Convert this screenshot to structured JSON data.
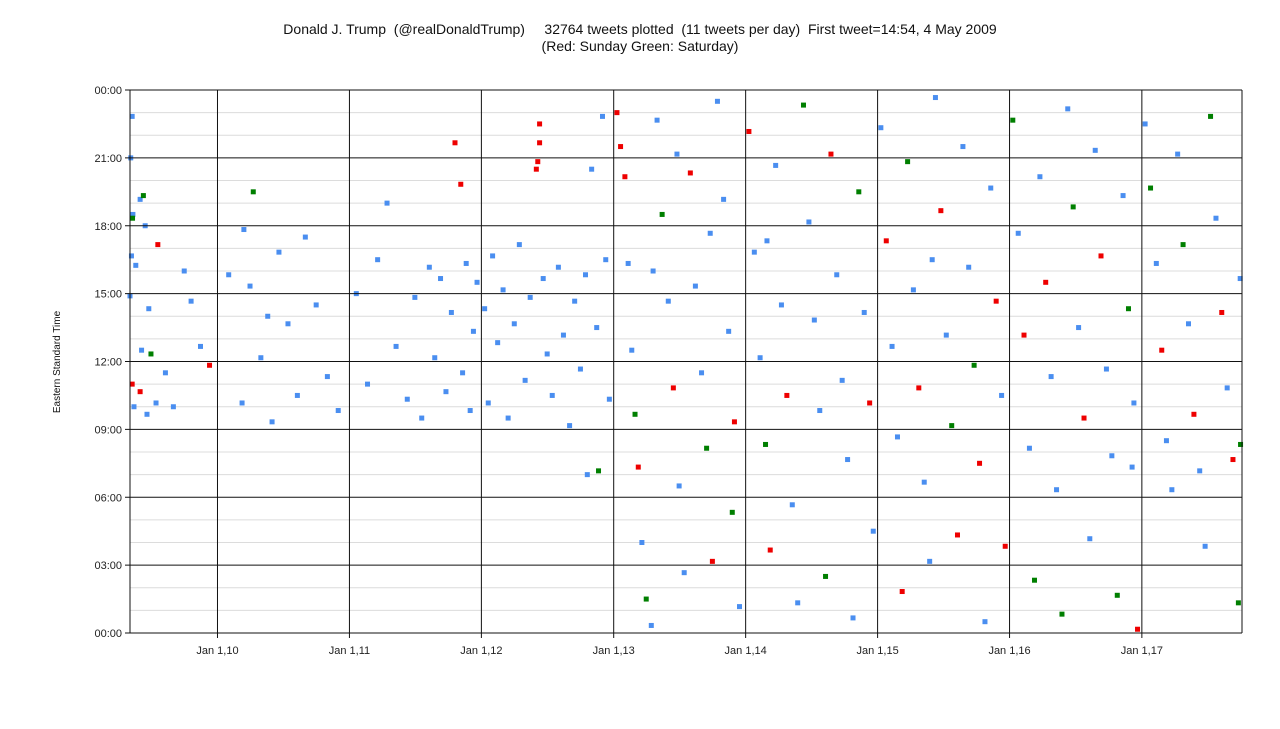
{
  "chart_data": {
    "type": "scatter",
    "title": "Donald J. Trump  (@realDonaldTrump)     32764 tweets plotted  (11 tweets per day)  First tweet=14:54, 4 May 2009",
    "subtitle": "(Red: Sunday  Green: Saturday)",
    "xlabel": "",
    "ylabel": "Eastern Standard Time",
    "xlim": [
      "2009-05-04",
      "2017-10-05"
    ],
    "ylim": [
      "00:00",
      "24:00"
    ],
    "x_ticks": [
      {
        "date": "2010-01-01",
        "label": "Jan 1,10"
      },
      {
        "date": "2011-01-01",
        "label": "Jan 1,11"
      },
      {
        "date": "2012-01-01",
        "label": "Jan 1,12"
      },
      {
        "date": "2013-01-01",
        "label": "Jan 1,13"
      },
      {
        "date": "2014-01-01",
        "label": "Jan 1,14"
      },
      {
        "date": "2015-01-01",
        "label": "Jan 1,15"
      },
      {
        "date": "2016-01-01",
        "label": "Jan 1,16"
      },
      {
        "date": "2017-01-01",
        "label": "Jan 1,17"
      }
    ],
    "y_ticks": [
      {
        "hour": 0,
        "label": "00:00"
      },
      {
        "hour": 3,
        "label": "03:00"
      },
      {
        "hour": 6,
        "label": "06:00"
      },
      {
        "hour": 9,
        "label": "09:00"
      },
      {
        "hour": 12,
        "label": "12:00"
      },
      {
        "hour": 15,
        "label": "15:00"
      },
      {
        "hour": 18,
        "label": "18:00"
      },
      {
        "hour": 21,
        "label": "21:00"
      },
      {
        "hour": 24,
        "label": "00:00"
      }
    ],
    "grid": true,
    "colors": {
      "weekday": "#4a8ef0",
      "saturday": "#007f00",
      "sunday": "#ee0000"
    },
    "points_note_key": [
      "date",
      "time",
      "day"
    ],
    "points": [
      [
        "2009-05-04",
        "14:54",
        "wd"
      ],
      [
        "2009-05-10",
        "22:50",
        "wd"
      ],
      [
        "2009-05-06",
        "21:00",
        "wd"
      ],
      [
        "2009-05-12",
        "18:30",
        "wd"
      ],
      [
        "2009-05-11",
        "18:20",
        "sa"
      ],
      [
        "2009-06-01",
        "19:10",
        "wd"
      ],
      [
        "2009-06-10",
        "19:20",
        "sa"
      ],
      [
        "2009-06-15",
        "18:00",
        "wd"
      ],
      [
        "2009-07-20",
        "17:10",
        "su"
      ],
      [
        "2009-05-08",
        "16:40",
        "wd"
      ],
      [
        "2009-05-20",
        "16:15",
        "wd"
      ],
      [
        "2009-06-05",
        "12:30",
        "wd"
      ],
      [
        "2009-07-01",
        "12:20",
        "sa"
      ],
      [
        "2009-05-10",
        "11:00",
        "su"
      ],
      [
        "2009-06-01",
        "10:40",
        "su"
      ],
      [
        "2009-05-15",
        "10:00",
        "wd"
      ],
      [
        "2009-06-20",
        "9:40",
        "wd"
      ],
      [
        "2009-07-15",
        "10:10",
        "wd"
      ],
      [
        "2009-08-10",
        "11:30",
        "wd"
      ],
      [
        "2009-09-01",
        "10:00",
        "wd"
      ],
      [
        "2009-10-01",
        "16:00",
        "wd"
      ],
      [
        "2009-10-20",
        "14:40",
        "wd"
      ],
      [
        "2009-11-15",
        "12:40",
        "wd"
      ],
      [
        "2009-12-10",
        "11:50",
        "su"
      ],
      [
        "2009-06-25",
        "14:20",
        "wd"
      ],
      [
        "2010-02-01",
        "15:50",
        "wd"
      ],
      [
        "2010-03-10",
        "10:10",
        "wd"
      ],
      [
        "2010-04-10",
        "19:30",
        "sa"
      ],
      [
        "2010-04-01",
        "15:20",
        "wd"
      ],
      [
        "2010-05-01",
        "12:10",
        "wd"
      ],
      [
        "2010-06-01",
        "9:20",
        "wd"
      ],
      [
        "2010-06-20",
        "16:50",
        "wd"
      ],
      [
        "2010-07-15",
        "13:40",
        "wd"
      ],
      [
        "2010-08-10",
        "10:30",
        "wd"
      ],
      [
        "2010-09-01",
        "17:30",
        "wd"
      ],
      [
        "2010-10-01",
        "14:30",
        "wd"
      ],
      [
        "2010-11-01",
        "11:20",
        "wd"
      ],
      [
        "2010-12-01",
        "9:50",
        "wd"
      ],
      [
        "2010-03-15",
        "17:50",
        "wd"
      ],
      [
        "2010-05-20",
        "14:00",
        "wd"
      ],
      [
        "2011-01-20",
        "15:00",
        "wd"
      ],
      [
        "2011-02-20",
        "11:00",
        "wd"
      ],
      [
        "2011-03-20",
        "16:30",
        "wd"
      ],
      [
        "2011-04-15",
        "19:00",
        "wd"
      ],
      [
        "2011-05-10",
        "12:40",
        "wd"
      ],
      [
        "2011-06-10",
        "10:20",
        "wd"
      ],
      [
        "2011-07-01",
        "14:50",
        "wd"
      ],
      [
        "2011-07-20",
        "9:30",
        "wd"
      ],
      [
        "2011-08-10",
        "16:10",
        "wd"
      ],
      [
        "2011-08-25",
        "12:10",
        "wd"
      ],
      [
        "2011-09-10",
        "15:40",
        "wd"
      ],
      [
        "2011-09-25",
        "10:40",
        "wd"
      ],
      [
        "2011-10-10",
        "14:10",
        "wd"
      ],
      [
        "2011-10-20",
        "21:40",
        "su"
      ],
      [
        "2011-11-05",
        "19:50",
        "su"
      ],
      [
        "2011-11-10",
        "11:30",
        "wd"
      ],
      [
        "2011-11-20",
        "16:20",
        "wd"
      ],
      [
        "2011-12-01",
        "9:50",
        "wd"
      ],
      [
        "2011-12-10",
        "13:20",
        "wd"
      ],
      [
        "2011-12-20",
        "15:30",
        "wd"
      ],
      [
        "2012-01-10",
        "14:20",
        "wd"
      ],
      [
        "2012-01-20",
        "10:10",
        "wd"
      ],
      [
        "2012-02-01",
        "16:40",
        "wd"
      ],
      [
        "2012-02-15",
        "12:50",
        "wd"
      ],
      [
        "2012-03-01",
        "15:10",
        "wd"
      ],
      [
        "2012-03-15",
        "9:30",
        "wd"
      ],
      [
        "2012-04-01",
        "13:40",
        "wd"
      ],
      [
        "2012-04-15",
        "17:10",
        "wd"
      ],
      [
        "2012-05-01",
        "11:10",
        "wd"
      ],
      [
        "2012-05-15",
        "14:50",
        "wd"
      ],
      [
        "2012-06-01",
        "20:30",
        "su"
      ],
      [
        "2012-06-05",
        "20:50",
        "su"
      ],
      [
        "2012-06-10",
        "22:30",
        "su"
      ],
      [
        "2012-06-10",
        "21:40",
        "su"
      ],
      [
        "2012-06-20",
        "15:40",
        "wd"
      ],
      [
        "2012-07-01",
        "12:20",
        "wd"
      ],
      [
        "2012-07-15",
        "10:30",
        "wd"
      ],
      [
        "2012-08-01",
        "16:10",
        "wd"
      ],
      [
        "2012-08-15",
        "13:10",
        "wd"
      ],
      [
        "2012-09-01",
        "9:10",
        "wd"
      ],
      [
        "2012-09-15",
        "14:40",
        "wd"
      ],
      [
        "2012-10-01",
        "11:40",
        "wd"
      ],
      [
        "2012-10-15",
        "15:50",
        "wd"
      ],
      [
        "2012-11-01",
        "20:30",
        "wd"
      ],
      [
        "2012-11-15",
        "13:30",
        "wd"
      ],
      [
        "2012-12-01",
        "22:50",
        "wd"
      ],
      [
        "2012-12-10",
        "16:30",
        "wd"
      ],
      [
        "2012-12-20",
        "10:20",
        "wd"
      ],
      [
        "2012-11-20",
        "7:10",
        "sa"
      ],
      [
        "2012-10-20",
        "7:00",
        "wd"
      ],
      [
        "2013-01-10",
        "23:00",
        "su"
      ],
      [
        "2013-01-20",
        "21:30",
        "su"
      ],
      [
        "2013-02-01",
        "20:10",
        "su"
      ],
      [
        "2013-02-10",
        "16:20",
        "wd"
      ],
      [
        "2013-02-20",
        "12:30",
        "wd"
      ],
      [
        "2013-03-01",
        "9:40",
        "sa"
      ],
      [
        "2013-03-10",
        "7:20",
        "su"
      ],
      [
        "2013-03-20",
        "4:00",
        "wd"
      ],
      [
        "2013-04-01",
        "1:30",
        "sa"
      ],
      [
        "2013-04-15",
        "0:20",
        "wd"
      ],
      [
        "2013-05-01",
        "22:40",
        "wd"
      ],
      [
        "2013-05-15",
        "18:30",
        "sa"
      ],
      [
        "2013-06-01",
        "14:40",
        "wd"
      ],
      [
        "2013-06-15",
        "10:50",
        "su"
      ],
      [
        "2013-07-01",
        "6:30",
        "wd"
      ],
      [
        "2013-07-15",
        "2:40",
        "wd"
      ],
      [
        "2013-08-01",
        "20:20",
        "su"
      ],
      [
        "2013-08-15",
        "15:20",
        "wd"
      ],
      [
        "2013-09-01",
        "11:30",
        "wd"
      ],
      [
        "2013-09-15",
        "8:10",
        "sa"
      ],
      [
        "2013-10-01",
        "3:10",
        "su"
      ],
      [
        "2013-10-15",
        "23:30",
        "wd"
      ],
      [
        "2013-11-01",
        "19:10",
        "wd"
      ],
      [
        "2013-11-15",
        "13:20",
        "wd"
      ],
      [
        "2013-12-01",
        "9:20",
        "su"
      ],
      [
        "2013-12-15",
        "1:10",
        "wd"
      ],
      [
        "2013-04-20",
        "16:00",
        "wd"
      ],
      [
        "2013-06-25",
        "21:10",
        "wd"
      ],
      [
        "2013-09-25",
        "17:40",
        "wd"
      ],
      [
        "2013-11-25",
        "5:20",
        "sa"
      ],
      [
        "2014-01-10",
        "22:10",
        "su"
      ],
      [
        "2014-01-25",
        "16:50",
        "wd"
      ],
      [
        "2014-02-10",
        "12:10",
        "wd"
      ],
      [
        "2014-02-25",
        "8:20",
        "sa"
      ],
      [
        "2014-03-10",
        "3:40",
        "su"
      ],
      [
        "2014-03-25",
        "20:40",
        "wd"
      ],
      [
        "2014-04-10",
        "14:30",
        "wd"
      ],
      [
        "2014-04-25",
        "10:30",
        "su"
      ],
      [
        "2014-05-10",
        "5:40",
        "wd"
      ],
      [
        "2014-05-25",
        "1:20",
        "wd"
      ],
      [
        "2014-06-10",
        "23:20",
        "sa"
      ],
      [
        "2014-06-25",
        "18:10",
        "wd"
      ],
      [
        "2014-07-10",
        "13:50",
        "wd"
      ],
      [
        "2014-07-25",
        "9:50",
        "wd"
      ],
      [
        "2014-08-10",
        "2:30",
        "sa"
      ],
      [
        "2014-08-25",
        "21:10",
        "su"
      ],
      [
        "2014-09-10",
        "15:50",
        "wd"
      ],
      [
        "2014-09-25",
        "11:10",
        "wd"
      ],
      [
        "2014-10-10",
        "7:40",
        "wd"
      ],
      [
        "2014-10-25",
        "0:40",
        "wd"
      ],
      [
        "2014-11-10",
        "19:30",
        "sa"
      ],
      [
        "2014-11-25",
        "14:10",
        "wd"
      ],
      [
        "2014-12-10",
        "10:10",
        "su"
      ],
      [
        "2014-12-20",
        "4:30",
        "wd"
      ],
      [
        "2014-03-01",
        "17:20",
        "wd"
      ],
      [
        "2015-01-10",
        "22:20",
        "wd"
      ],
      [
        "2015-01-25",
        "17:20",
        "su"
      ],
      [
        "2015-02-10",
        "12:40",
        "wd"
      ],
      [
        "2015-02-25",
        "8:40",
        "wd"
      ],
      [
        "2015-03-10",
        "1:50",
        "su"
      ],
      [
        "2015-03-25",
        "20:50",
        "sa"
      ],
      [
        "2015-04-10",
        "15:10",
        "wd"
      ],
      [
        "2015-04-25",
        "10:50",
        "su"
      ],
      [
        "2015-05-10",
        "6:40",
        "wd"
      ],
      [
        "2015-05-25",
        "3:10",
        "wd"
      ],
      [
        "2015-06-10",
        "23:40",
        "wd"
      ],
      [
        "2015-06-25",
        "18:40",
        "su"
      ],
      [
        "2015-07-10",
        "13:10",
        "wd"
      ],
      [
        "2015-07-25",
        "9:10",
        "sa"
      ],
      [
        "2015-08-10",
        "4:20",
        "su"
      ],
      [
        "2015-08-25",
        "21:30",
        "wd"
      ],
      [
        "2015-09-10",
        "16:10",
        "wd"
      ],
      [
        "2015-09-25",
        "11:50",
        "sa"
      ],
      [
        "2015-10-10",
        "7:30",
        "su"
      ],
      [
        "2015-10-25",
        "0:30",
        "wd"
      ],
      [
        "2015-11-10",
        "19:40",
        "wd"
      ],
      [
        "2015-11-25",
        "14:40",
        "su"
      ],
      [
        "2015-12-10",
        "10:30",
        "wd"
      ],
      [
        "2015-12-20",
        "3:50",
        "su"
      ],
      [
        "2015-06-01",
        "16:30",
        "wd"
      ],
      [
        "2016-01-10",
        "22:40",
        "sa"
      ],
      [
        "2016-01-25",
        "17:40",
        "wd"
      ],
      [
        "2016-02-10",
        "13:10",
        "su"
      ],
      [
        "2016-02-25",
        "8:10",
        "wd"
      ],
      [
        "2016-03-10",
        "2:20",
        "sa"
      ],
      [
        "2016-03-25",
        "20:10",
        "wd"
      ],
      [
        "2016-04-10",
        "15:30",
        "su"
      ],
      [
        "2016-04-25",
        "11:20",
        "wd"
      ],
      [
        "2016-05-10",
        "6:20",
        "wd"
      ],
      [
        "2016-05-25",
        "0:50",
        "sa"
      ],
      [
        "2016-06-10",
        "23:10",
        "wd"
      ],
      [
        "2016-06-25",
        "18:50",
        "sa"
      ],
      [
        "2016-07-10",
        "13:30",
        "wd"
      ],
      [
        "2016-07-25",
        "9:30",
        "su"
      ],
      [
        "2016-08-10",
        "4:10",
        "wd"
      ],
      [
        "2016-08-25",
        "21:20",
        "wd"
      ],
      [
        "2016-09-10",
        "16:40",
        "su"
      ],
      [
        "2016-09-25",
        "11:40",
        "wd"
      ],
      [
        "2016-10-10",
        "7:50",
        "wd"
      ],
      [
        "2016-10-25",
        "1:40",
        "sa"
      ],
      [
        "2016-11-10",
        "19:20",
        "wd"
      ],
      [
        "2016-11-25",
        "14:20",
        "sa"
      ],
      [
        "2016-12-10",
        "10:10",
        "wd"
      ],
      [
        "2016-12-20",
        "0:10",
        "su"
      ],
      [
        "2016-12-05",
        "7:20",
        "wd"
      ],
      [
        "2017-01-10",
        "22:30",
        "wd"
      ],
      [
        "2017-01-25",
        "19:40",
        "sa"
      ],
      [
        "2017-02-10",
        "16:20",
        "wd"
      ],
      [
        "2017-02-25",
        "12:30",
        "su"
      ],
      [
        "2017-03-10",
        "8:30",
        "wd"
      ],
      [
        "2017-03-25",
        "6:20",
        "wd"
      ],
      [
        "2017-04-10",
        "21:10",
        "wd"
      ],
      [
        "2017-04-25",
        "17:10",
        "sa"
      ],
      [
        "2017-05-10",
        "13:40",
        "wd"
      ],
      [
        "2017-05-25",
        "9:40",
        "su"
      ],
      [
        "2017-06-10",
        "7:10",
        "wd"
      ],
      [
        "2017-06-25",
        "3:50",
        "wd"
      ],
      [
        "2017-07-10",
        "22:50",
        "sa"
      ],
      [
        "2017-07-25",
        "18:20",
        "wd"
      ],
      [
        "2017-08-10",
        "14:10",
        "su"
      ],
      [
        "2017-08-25",
        "10:50",
        "wd"
      ],
      [
        "2017-09-10",
        "7:40",
        "su"
      ],
      [
        "2017-09-25",
        "1:20",
        "sa"
      ],
      [
        "2017-09-30",
        "15:40",
        "wd"
      ],
      [
        "2017-10-01",
        "8:20",
        "sa"
      ]
    ]
  }
}
